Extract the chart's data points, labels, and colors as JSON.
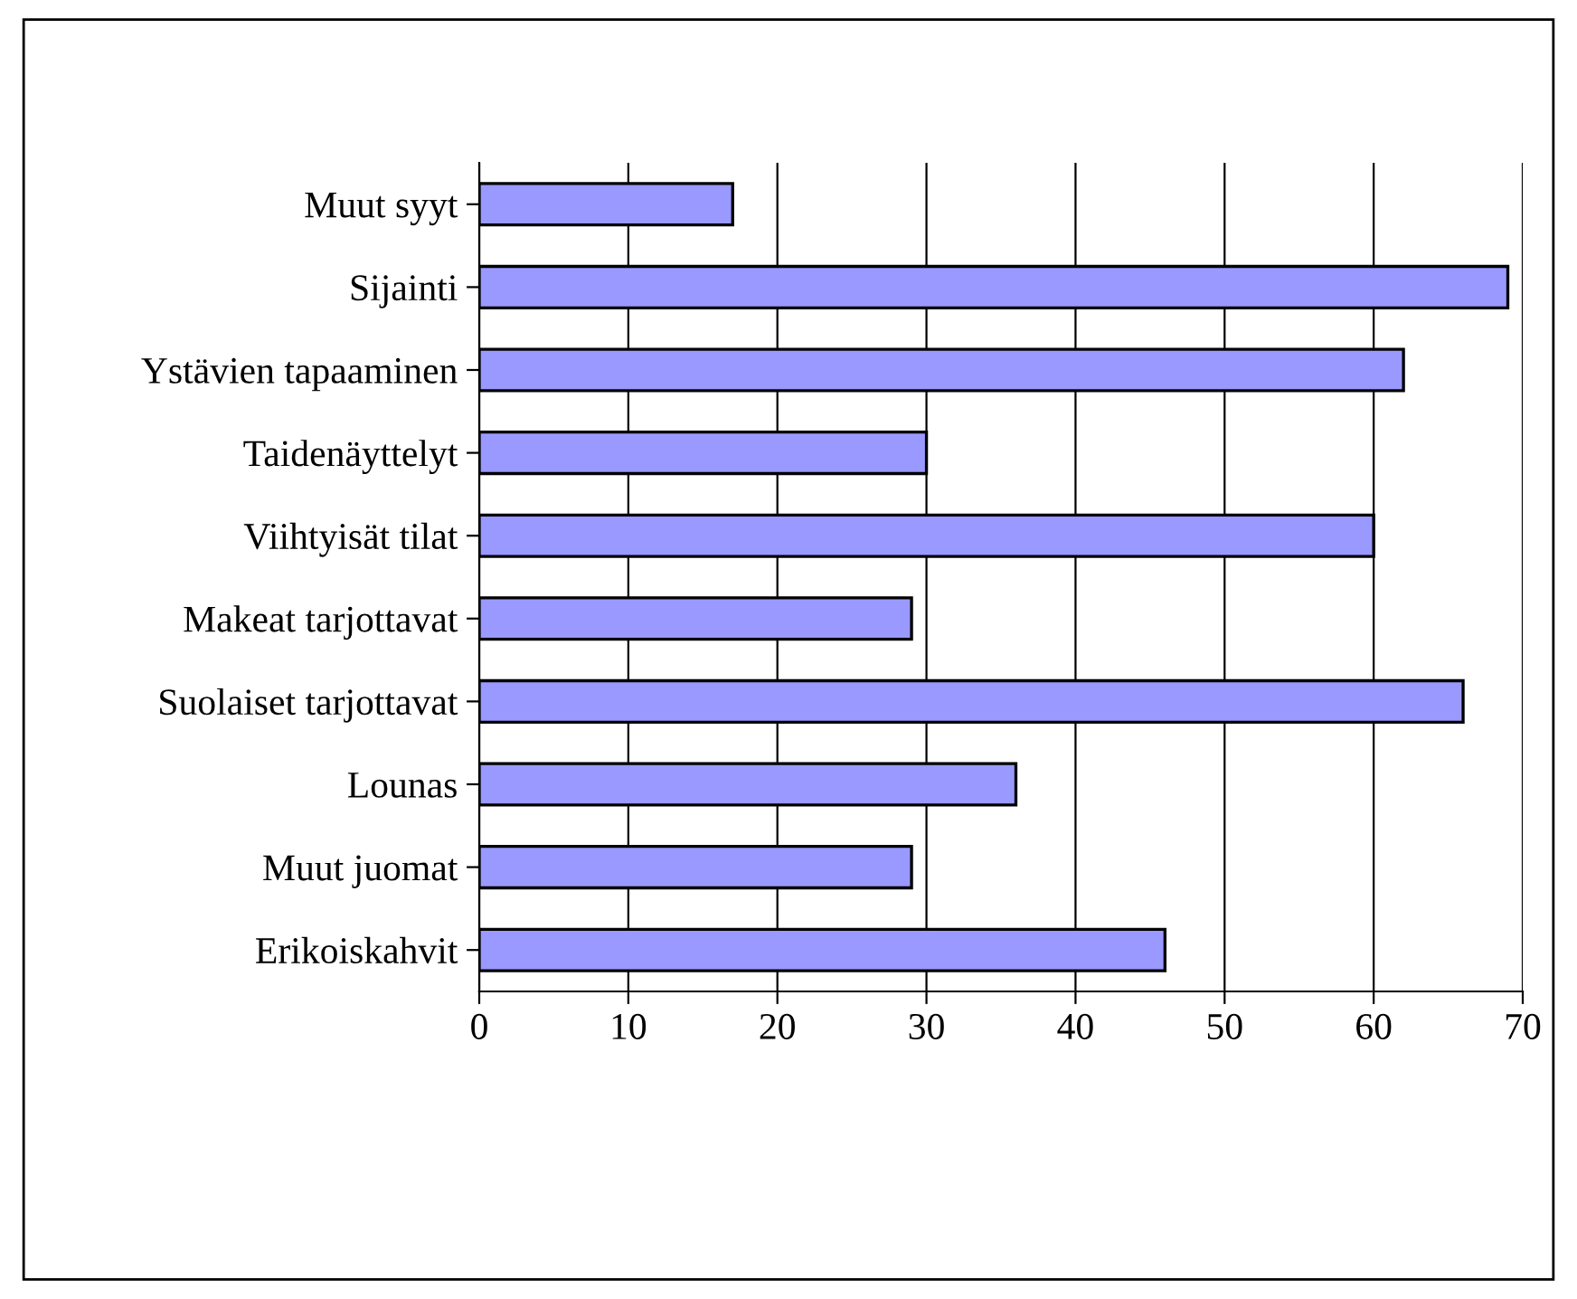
{
  "chart_data": {
    "type": "bar",
    "orientation": "horizontal",
    "categories": [
      "Muut syyt",
      "Sijainti",
      "Ystävien tapaaminen",
      "Taidenäyttelyt",
      "Viihtyisät tilat",
      "Makeat tarjottavat",
      "Suolaiset tarjottavat",
      "Lounas",
      "Muut juomat",
      "Erikoiskahvit"
    ],
    "values": [
      17,
      69,
      62,
      30,
      60,
      29,
      66,
      36,
      29,
      46
    ],
    "color": "#9999ff",
    "xlim": [
      0,
      70
    ],
    "xticks": [
      0,
      10,
      20,
      30,
      40,
      50,
      60,
      70
    ],
    "grid": "x"
  }
}
